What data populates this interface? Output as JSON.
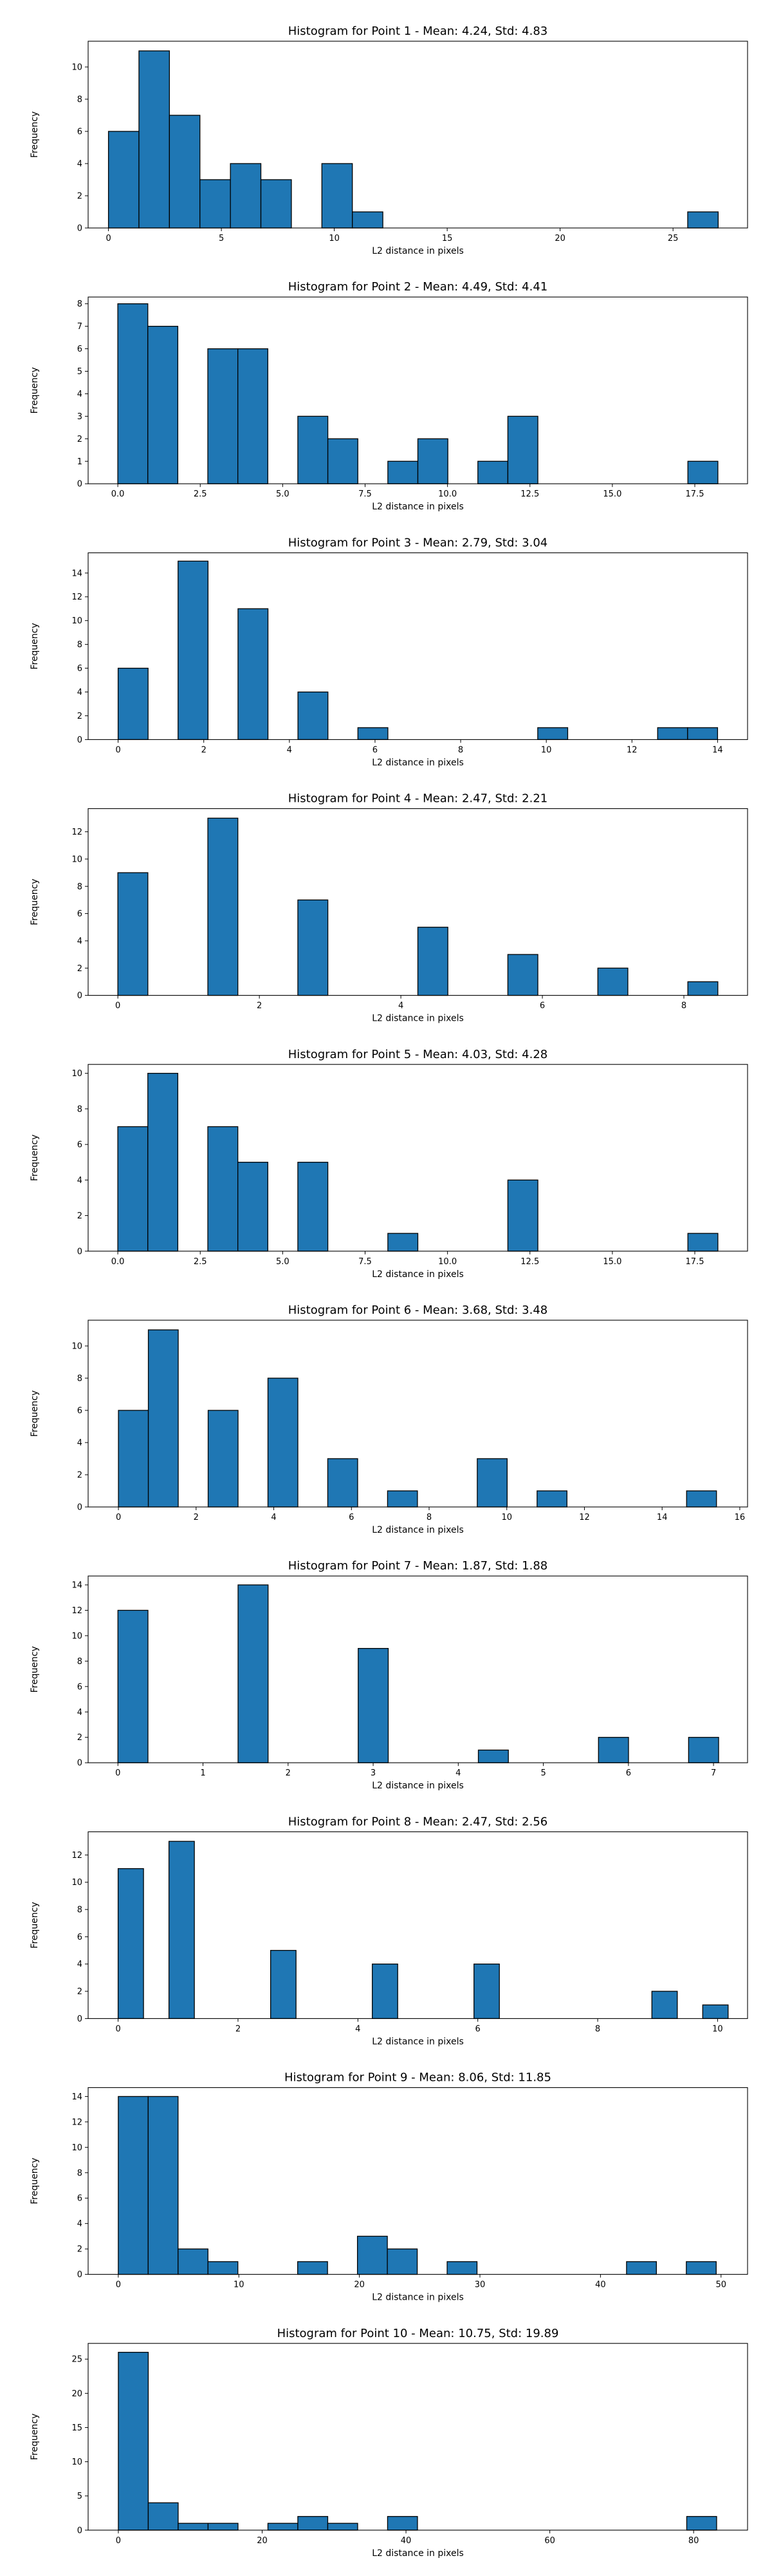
{
  "style": {
    "bar_color": "#1f77b4",
    "edge_color": "#000000",
    "grid": false,
    "legend": "none"
  },
  "chart_data": [
    {
      "type": "bar",
      "title": "Histogram for Point 1 - Mean: 4.24, Std: 4.83",
      "xlabel": "L2 distance in pixels",
      "ylabel": "Frequency",
      "xlim": [
        -0.9,
        28.3
      ],
      "ylim": [
        0,
        11.6
      ],
      "xticks": [
        0,
        5,
        10,
        15,
        20,
        25
      ],
      "xtick_labels": [
        "0",
        "5",
        "10",
        "15",
        "20",
        "25"
      ],
      "yticks": [
        0,
        2,
        4,
        6,
        8,
        10
      ],
      "ytick_labels": [
        "0",
        "2",
        "4",
        "6",
        "8",
        "10"
      ],
      "bin_edges": [
        0,
        1.35,
        2.7,
        4.05,
        5.4,
        6.75,
        8.1,
        9.45,
        10.8,
        12.15,
        13.5,
        14.85,
        16.2,
        17.55,
        18.9,
        20.25,
        21.6,
        22.95,
        24.3,
        25.65,
        27.0
      ],
      "counts": [
        6,
        11,
        7,
        3,
        4,
        3,
        0,
        4,
        1,
        0,
        0,
        0,
        0,
        0,
        0,
        0,
        0,
        0,
        0,
        1
      ]
    },
    {
      "type": "bar",
      "title": "Histogram for Point 2 - Mean: 4.49, Std: 4.41",
      "xlabel": "L2 distance in pixels",
      "ylabel": "Frequency",
      "xlim": [
        -0.9,
        19.1
      ],
      "ylim": [
        0,
        8.3
      ],
      "xticks": [
        0,
        2.5,
        5,
        7.5,
        10,
        12.5,
        15,
        17.5
      ],
      "xtick_labels": [
        "0.0",
        "2.5",
        "5.0",
        "7.5",
        "10.0",
        "12.5",
        "15.0",
        "17.5"
      ],
      "yticks": [
        0,
        1,
        2,
        3,
        4,
        5,
        6,
        7,
        8
      ],
      "ytick_labels": [
        "0",
        "1",
        "2",
        "3",
        "4",
        "5",
        "6",
        "7",
        "8"
      ],
      "bin_edges": [
        0,
        0.91,
        1.82,
        2.73,
        3.64,
        4.55,
        5.46,
        6.37,
        7.28,
        8.19,
        9.1,
        10.01,
        10.92,
        11.83,
        12.74,
        13.65,
        14.56,
        15.47,
        16.38,
        17.29,
        18.2
      ],
      "counts": [
        8,
        7,
        0,
        6,
        6,
        0,
        3,
        2,
        0,
        1,
        2,
        0,
        1,
        3,
        0,
        0,
        0,
        0,
        0,
        1
      ]
    },
    {
      "type": "bar",
      "title": "Histogram for Point 3 - Mean: 2.79, Std: 3.04",
      "xlabel": "L2 distance in pixels",
      "ylabel": "Frequency",
      "xlim": [
        -0.7,
        14.7
      ],
      "ylim": [
        0,
        15.7
      ],
      "xticks": [
        0,
        2,
        4,
        6,
        8,
        10,
        12,
        14
      ],
      "xtick_labels": [
        "0",
        "2",
        "4",
        "6",
        "8",
        "10",
        "12",
        "14"
      ],
      "yticks": [
        0,
        2,
        4,
        6,
        8,
        10,
        12,
        14
      ],
      "ytick_labels": [
        "0",
        "2",
        "4",
        "6",
        "8",
        "10",
        "12",
        "14"
      ],
      "bin_edges": [
        0,
        0.7,
        1.4,
        2.1,
        2.8,
        3.5,
        4.2,
        4.9,
        5.6,
        6.3,
        7.0,
        7.7,
        8.4,
        9.1,
        9.8,
        10.5,
        11.2,
        11.9,
        12.6,
        13.3,
        14.0
      ],
      "counts": [
        6,
        0,
        15,
        0,
        11,
        0,
        4,
        0,
        1,
        0,
        0,
        0,
        0,
        0,
        1,
        0,
        0,
        0,
        1,
        1
      ]
    },
    {
      "type": "bar",
      "title": "Histogram for Point 4 - Mean: 2.47, Std: 2.21",
      "xlabel": "L2 distance in pixels",
      "ylabel": "Frequency",
      "xlim": [
        -0.42,
        8.9
      ],
      "ylim": [
        0,
        13.7
      ],
      "xticks": [
        0,
        2,
        4,
        6,
        8
      ],
      "xtick_labels": [
        "0",
        "2",
        "4",
        "6",
        "8"
      ],
      "yticks": [
        0,
        2,
        4,
        6,
        8,
        10,
        12
      ],
      "ytick_labels": [
        "0",
        "2",
        "4",
        "6",
        "8",
        "10",
        "12"
      ],
      "bin_edges": [
        0,
        0.424,
        0.848,
        1.272,
        1.696,
        2.12,
        2.544,
        2.968,
        3.392,
        3.816,
        4.24,
        4.664,
        5.088,
        5.512,
        5.936,
        6.36,
        6.784,
        7.208,
        7.632,
        8.056,
        8.48
      ],
      "counts": [
        9,
        0,
        0,
        13,
        0,
        0,
        7,
        0,
        0,
        0,
        5,
        0,
        0,
        3,
        0,
        0,
        2,
        0,
        0,
        1
      ]
    },
    {
      "type": "bar",
      "title": "Histogram for Point 5 - Mean: 4.03, Std: 4.28",
      "xlabel": "L2 distance in pixels",
      "ylabel": "Frequency",
      "xlim": [
        -0.9,
        19.1
      ],
      "ylim": [
        0,
        10.5
      ],
      "xticks": [
        0,
        2.5,
        5,
        7.5,
        10,
        12.5,
        15,
        17.5
      ],
      "xtick_labels": [
        "0.0",
        "2.5",
        "5.0",
        "7.5",
        "10.0",
        "12.5",
        "15.0",
        "17.5"
      ],
      "yticks": [
        0,
        2,
        4,
        6,
        8,
        10
      ],
      "ytick_labels": [
        "0",
        "2",
        "4",
        "6",
        "8",
        "10"
      ],
      "bin_edges": [
        0,
        0.91,
        1.82,
        2.73,
        3.64,
        4.55,
        5.46,
        6.37,
        7.28,
        8.19,
        9.1,
        10.01,
        10.92,
        11.83,
        12.74,
        13.65,
        14.56,
        15.47,
        16.38,
        17.29,
        18.2
      ],
      "counts": [
        7,
        10,
        0,
        7,
        5,
        0,
        5,
        0,
        0,
        1,
        0,
        0,
        0,
        4,
        0,
        0,
        0,
        0,
        0,
        1
      ]
    },
    {
      "type": "bar",
      "title": "Histogram for Point 6 - Mean: 3.68, Std: 3.48",
      "xlabel": "L2 distance in pixels",
      "ylabel": "Frequency",
      "xlim": [
        -0.78,
        16.2
      ],
      "ylim": [
        0,
        11.6
      ],
      "xticks": [
        0,
        2,
        4,
        6,
        8,
        10,
        12,
        14,
        16
      ],
      "xtick_labels": [
        "0",
        "2",
        "4",
        "6",
        "8",
        "10",
        "12",
        "14",
        "16"
      ],
      "yticks": [
        0,
        2,
        4,
        6,
        8,
        10
      ],
      "ytick_labels": [
        "0",
        "2",
        "4",
        "6",
        "8",
        "10"
      ],
      "bin_edges": [
        0,
        0.77,
        1.54,
        2.31,
        3.08,
        3.85,
        4.62,
        5.39,
        6.16,
        6.93,
        7.7,
        8.47,
        9.24,
        10.01,
        10.78,
        11.55,
        12.32,
        13.09,
        13.86,
        14.63,
        15.4
      ],
      "counts": [
        6,
        11,
        0,
        6,
        0,
        8,
        0,
        3,
        0,
        1,
        0,
        0,
        3,
        0,
        1,
        0,
        0,
        0,
        0,
        1
      ]
    },
    {
      "type": "bar",
      "title": "Histogram for Point 7 - Mean: 1.87, Std: 1.88",
      "xlabel": "L2 distance in pixels",
      "ylabel": "Frequency",
      "xlim": [
        -0.35,
        7.4
      ],
      "ylim": [
        0,
        14.7
      ],
      "xticks": [
        0,
        1,
        2,
        3,
        4,
        5,
        6,
        7
      ],
      "xtick_labels": [
        "0",
        "1",
        "2",
        "3",
        "4",
        "5",
        "6",
        "7"
      ],
      "yticks": [
        0,
        2,
        4,
        6,
        8,
        10,
        12,
        14
      ],
      "ytick_labels": [
        "0",
        "2",
        "4",
        "6",
        "8",
        "10",
        "12",
        "14"
      ],
      "bin_edges": [
        0,
        0.353,
        0.706,
        1.059,
        1.412,
        1.765,
        2.118,
        2.471,
        2.824,
        3.177,
        3.53,
        3.883,
        4.236,
        4.589,
        4.942,
        5.295,
        5.648,
        6.001,
        6.354,
        6.707,
        7.06
      ],
      "counts": [
        12,
        0,
        0,
        0,
        14,
        0,
        0,
        0,
        9,
        0,
        0,
        0,
        1,
        0,
        0,
        0,
        2,
        0,
        0,
        2
      ]
    },
    {
      "type": "bar",
      "title": "Histogram for Point 8 - Mean: 2.47, Std: 2.56",
      "xlabel": "L2 distance in pixels",
      "ylabel": "Frequency",
      "xlim": [
        -0.5,
        10.5
      ],
      "ylim": [
        0,
        13.7
      ],
      "xticks": [
        0,
        2,
        4,
        6,
        8,
        10
      ],
      "xtick_labels": [
        "0",
        "2",
        "4",
        "6",
        "8",
        "10"
      ],
      "yticks": [
        0,
        2,
        4,
        6,
        8,
        10,
        12
      ],
      "ytick_labels": [
        "0",
        "2",
        "4",
        "6",
        "8",
        "10",
        "12"
      ],
      "bin_edges": [
        0,
        0.424,
        0.848,
        1.272,
        1.696,
        2.12,
        2.544,
        2.968,
        3.392,
        3.816,
        4.24,
        4.664,
        5.088,
        5.512,
        5.936,
        6.36,
        6.784,
        7.208,
        7.632,
        8.056,
        8.48,
        8.904,
        9.328,
        9.752,
        10.176
      ],
      "counts": [
        11,
        0,
        13,
        0,
        0,
        0,
        5,
        0,
        0,
        0,
        4,
        0,
        0,
        0,
        4,
        0,
        0,
        0,
        0,
        0,
        0,
        2,
        0,
        1
      ]
    },
    {
      "type": "bar",
      "title": "Histogram for Point 9 - Mean: 8.06, Std: 11.85",
      "xlabel": "L2 distance in pixels",
      "ylabel": "Frequency",
      "xlim": [
        -2.5,
        52.2
      ],
      "ylim": [
        0,
        14.7
      ],
      "xticks": [
        0,
        10,
        20,
        30,
        40,
        50
      ],
      "xtick_labels": [
        "0",
        "10",
        "20",
        "30",
        "40",
        "50"
      ],
      "yticks": [
        0,
        2,
        4,
        6,
        8,
        10,
        12,
        14
      ],
      "ytick_labels": [
        "0",
        "2",
        "4",
        "6",
        "8",
        "10",
        "12",
        "14"
      ],
      "bin_edges": [
        0,
        2.48,
        4.96,
        7.44,
        9.92,
        12.4,
        14.88,
        17.36,
        19.84,
        22.32,
        24.8,
        27.28,
        29.76,
        32.24,
        34.72,
        37.2,
        39.68,
        42.16,
        44.64,
        47.12,
        49.6
      ],
      "counts": [
        14,
        14,
        2,
        1,
        0,
        0,
        1,
        0,
        3,
        2,
        0,
        1,
        0,
        0,
        0,
        0,
        0,
        1,
        0,
        1
      ]
    },
    {
      "type": "bar",
      "title": "Histogram for Point 10 - Mean: 10.75, Std: 19.89",
      "xlabel": "L2 distance in pixels",
      "ylabel": "Frequency",
      "xlim": [
        -4.2,
        87.5
      ],
      "ylim": [
        0,
        27.3
      ],
      "xticks": [
        0,
        20,
        40,
        60,
        80
      ],
      "xtick_labels": [
        "0",
        "20",
        "40",
        "60",
        "80"
      ],
      "yticks": [
        0,
        5,
        10,
        15,
        20,
        25
      ],
      "ytick_labels": [
        "0",
        "5",
        "10",
        "15",
        "20",
        "25"
      ],
      "bin_edges": [
        0,
        4.16,
        8.32,
        12.48,
        16.64,
        20.8,
        24.96,
        29.12,
        33.28,
        37.44,
        41.6,
        45.76,
        49.92,
        54.08,
        58.24,
        62.4,
        66.56,
        70.72,
        74.88,
        79.04,
        83.2
      ],
      "counts": [
        26,
        4,
        1,
        1,
        0,
        1,
        2,
        1,
        0,
        2,
        0,
        0,
        0,
        0,
        0,
        0,
        0,
        0,
        0,
        2
      ]
    }
  ]
}
